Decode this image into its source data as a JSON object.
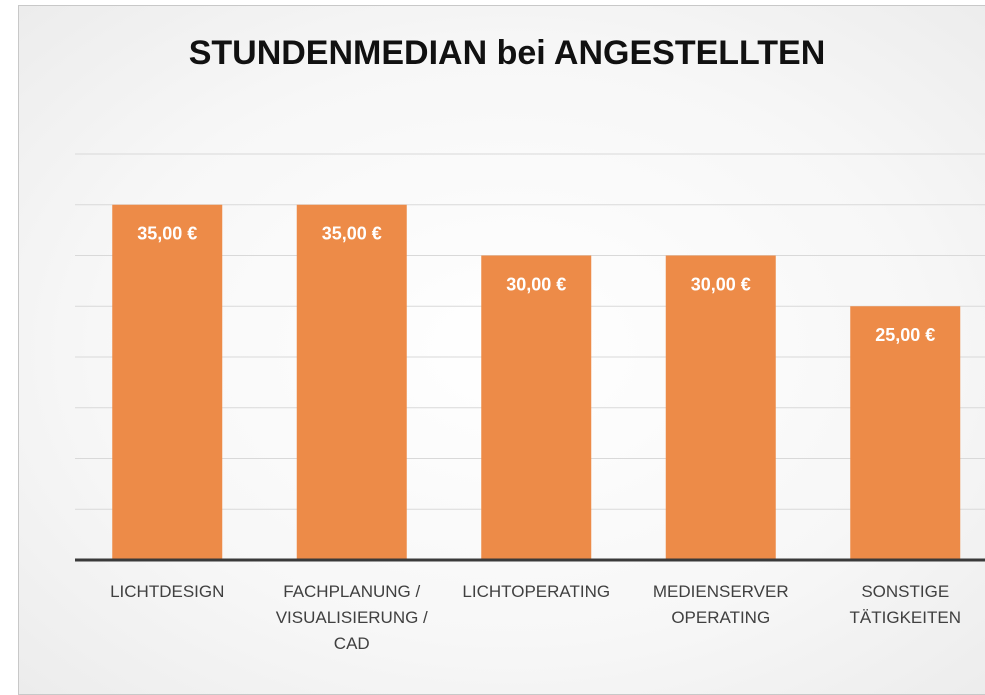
{
  "chart_data": {
    "type": "bar",
    "title": "STUNDENMEDIAN bei ANGESTELLTEN",
    "categories": [
      "LICHTDESIGN",
      "FACHPLANUNG / VISUALISIERUNG / CAD",
      "LICHTOPERATING",
      "MEDIENSERVER OPERATING",
      "SONSTIGE TÄTIGKEITEN"
    ],
    "values": [
      35,
      35,
      30,
      30,
      25
    ],
    "value_labels": [
      "35,00 €",
      "35,00 €",
      "30,00 €",
      "30,00 €",
      "25,00 €"
    ],
    "color": "#ed8b48",
    "ylim": [
      0,
      40
    ],
    "yticks": [
      0,
      5,
      10,
      15,
      20,
      25,
      30,
      35,
      40
    ],
    "grid": true
  }
}
